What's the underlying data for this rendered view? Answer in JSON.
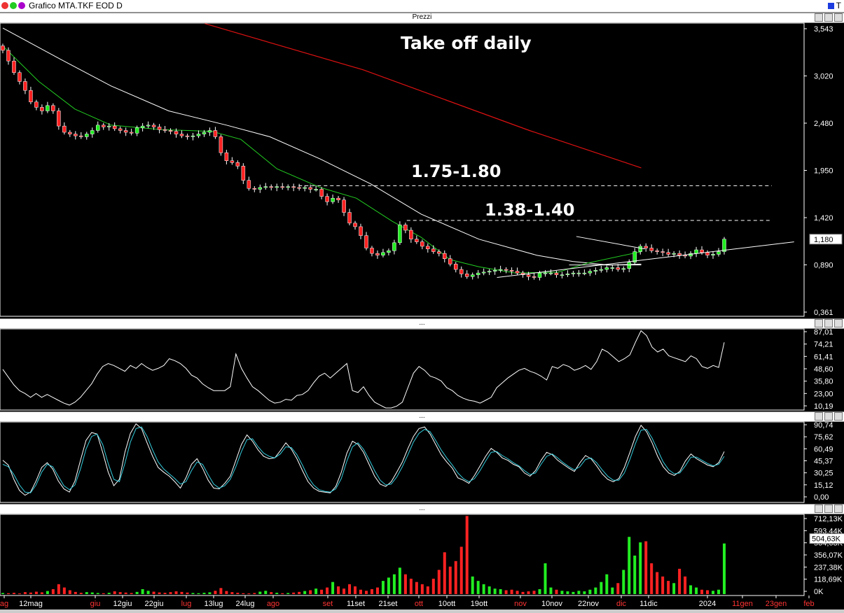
{
  "window": {
    "title": "Grafico MTA.TKF EOD D",
    "top_right_label": "T"
  },
  "panes": {
    "price_header": "Prezzi",
    "rsi_header": "...",
    "stoch_header": "...",
    "volume_header": "..."
  },
  "colors": {
    "bull": "#22ee22",
    "bear": "#ff2222",
    "ma_long": "#dd1111",
    "ma_mid": "#ffffff",
    "ma_short": "#22cc22",
    "stoch_k": "#ffffff",
    "stoch_d": "#33ccdd",
    "weekend_date": "#ff3333",
    "date": "#ffffff"
  },
  "chart_data": [
    {
      "type": "candlestick",
      "title": "Take off daily",
      "ylabels": [
        "3,543",
        "3,020",
        "2,480",
        "1,950",
        "1,420",
        "0,890",
        "0,361"
      ],
      "ylim": [
        0.361,
        3.543
      ],
      "last_price_label": "1,180",
      "annotations": [
        {
          "text": "1.75-1.80",
          "level": 1.78
        },
        {
          "text": "1.38-1.40",
          "level": 1.39
        }
      ],
      "closes": [
        3.3,
        3.18,
        3.05,
        2.95,
        2.85,
        2.72,
        2.66,
        2.62,
        2.68,
        2.62,
        2.45,
        2.38,
        2.36,
        2.34,
        2.33,
        2.36,
        2.4,
        2.46,
        2.44,
        2.45,
        2.42,
        2.4,
        2.38,
        2.37,
        2.43,
        2.45,
        2.46,
        2.44,
        2.41,
        2.4,
        2.39,
        2.36,
        2.34,
        2.33,
        2.34,
        2.36,
        2.38,
        2.4,
        2.33,
        2.15,
        2.06,
        2.04,
        2.0,
        1.84,
        1.75,
        1.74,
        1.76,
        1.77,
        1.76,
        1.77,
        1.76,
        1.77,
        1.76,
        1.75,
        1.76,
        1.74,
        1.74,
        1.66,
        1.6,
        1.64,
        1.62,
        1.48,
        1.36,
        1.32,
        1.22,
        1.08,
        1.02,
        1.0,
        1.03,
        1.05,
        1.14,
        1.34,
        1.28,
        1.18,
        1.15,
        1.1,
        1.07,
        1.04,
        1.02,
        0.96,
        0.9,
        0.84,
        0.79,
        0.76,
        0.78,
        0.8,
        0.81,
        0.82,
        0.83,
        0.84,
        0.83,
        0.82,
        0.8,
        0.78,
        0.76,
        0.75,
        0.8,
        0.8,
        0.8,
        0.78,
        0.78,
        0.79,
        0.8,
        0.8,
        0.8,
        0.82,
        0.83,
        0.84,
        0.86,
        0.86,
        0.84,
        0.85,
        0.92,
        1.04,
        1.1,
        1.08,
        1.05,
        1.04,
        1.03,
        1.01,
        1.02,
        1.0,
        0.99,
        1.02,
        1.06,
        1.03,
        1.0,
        1.01,
        1.04,
        1.18
      ],
      "ma_long": [
        [
          0.28,
          3.6
        ],
        [
          0.5,
          3.08
        ],
        [
          0.73,
          2.4
        ],
        [
          0.885,
          1.98
        ]
      ],
      "ma_mid": [
        [
          0.0,
          3.55
        ],
        [
          0.08,
          3.2
        ],
        [
          0.15,
          2.9
        ],
        [
          0.23,
          2.62
        ],
        [
          0.31,
          2.46
        ],
        [
          0.37,
          2.33
        ],
        [
          0.44,
          2.08
        ],
        [
          0.51,
          1.8
        ],
        [
          0.58,
          1.46
        ],
        [
          0.66,
          1.18
        ],
        [
          0.74,
          1.0
        ],
        [
          0.79,
          0.93
        ],
        [
          0.84,
          0.89
        ],
        [
          0.885,
          0.9
        ]
      ],
      "ma_short": [
        [
          0.0,
          3.35
        ],
        [
          0.05,
          2.95
        ],
        [
          0.1,
          2.64
        ],
        [
          0.15,
          2.46
        ],
        [
          0.22,
          2.41
        ],
        [
          0.29,
          2.39
        ],
        [
          0.33,
          2.3
        ],
        [
          0.38,
          1.97
        ],
        [
          0.44,
          1.76
        ],
        [
          0.49,
          1.64
        ],
        [
          0.54,
          1.38
        ],
        [
          0.58,
          1.2
        ],
        [
          0.62,
          0.95
        ],
        [
          0.66,
          0.87
        ],
        [
          0.71,
          0.8
        ],
        [
          0.77,
          0.81
        ],
        [
          0.81,
          0.91
        ],
        [
          0.885,
          1.04
        ]
      ],
      "trendlines": [
        {
          "from": [
            0.685,
            0.75
          ],
          "to": [
            0.99,
            1.15
          ]
        },
        {
          "from": [
            0.795,
            1.21
          ],
          "to": [
            0.89,
            1.07
          ]
        },
        {
          "from": [
            0.785,
            0.89
          ],
          "to": [
            0.885,
            0.89
          ]
        }
      ],
      "level_lines": [
        1.78,
        1.39
      ]
    },
    {
      "type": "line",
      "ylabels": [
        "87,01",
        "74,21",
        "61,41",
        "48,60",
        "35,80",
        "23,00",
        "10,19"
      ],
      "ylim": [
        10.19,
        87.01
      ],
      "values": [
        48,
        40,
        32,
        26,
        23,
        19,
        23,
        19,
        22,
        19,
        16,
        13,
        11,
        14,
        19,
        26,
        33,
        43,
        51,
        54,
        52,
        49,
        46,
        52,
        49,
        54,
        50,
        47,
        49,
        52,
        59,
        57,
        54,
        49,
        42,
        39,
        33,
        29,
        26,
        26,
        26,
        30,
        64,
        49,
        39,
        30,
        26,
        21,
        16,
        13,
        14,
        17,
        16,
        21,
        22,
        26,
        34,
        41,
        44,
        39,
        44,
        49,
        54,
        26,
        24,
        30,
        21,
        14,
        11,
        8,
        8,
        10,
        14,
        29,
        44,
        51,
        47,
        41,
        39,
        36,
        29,
        26,
        21,
        18,
        16,
        15,
        13,
        16,
        19,
        29,
        34,
        39,
        43,
        47,
        49,
        46,
        44,
        41,
        37,
        51,
        49,
        53,
        51,
        47,
        49,
        52,
        48,
        56,
        69,
        66,
        61,
        56,
        59,
        63,
        76,
        88,
        83,
        71,
        66,
        69,
        62,
        60,
        58,
        56,
        62,
        59,
        51,
        49,
        52,
        50,
        76
      ]
    },
    {
      "type": "line",
      "ylabels": [
        "90,74",
        "75,62",
        "60,49",
        "45,37",
        "30,25",
        "15,12",
        "0,00"
      ],
      "ylim": [
        0,
        90.74
      ],
      "series": [
        {
          "name": "%K",
          "values": [
            46,
            40,
            22,
            8,
            2,
            6,
            20,
            37,
            43,
            35,
            20,
            10,
            6,
            20,
            46,
            71,
            81,
            79,
            56,
            31,
            14,
            22,
            56,
            80,
            92,
            86,
            68,
            51,
            37,
            31,
            26,
            19,
            11,
            24,
            41,
            48,
            36,
            21,
            11,
            10,
            17,
            26,
            46,
            66,
            78,
            70,
            59,
            51,
            48,
            49,
            58,
            68,
            60,
            48,
            33,
            19,
            11,
            7,
            6,
            5,
            13,
            31,
            55,
            70,
            66,
            56,
            41,
            26,
            16,
            13,
            19,
            31,
            44,
            61,
            76,
            86,
            88,
            79,
            66,
            53,
            44,
            36,
            24,
            21,
            17,
            27,
            39,
            51,
            61,
            56,
            49,
            46,
            41,
            38,
            30,
            26,
            33,
            46,
            56,
            53,
            46,
            41,
            36,
            32,
            43,
            52,
            48,
            39,
            29,
            22,
            19,
            23,
            37,
            56,
            76,
            90,
            82,
            68,
            51,
            38,
            30,
            27,
            32,
            45,
            54,
            48,
            44,
            40,
            38,
            43,
            57
          ]
        },
        {
          "name": "%D",
          "values": [
            41,
            38,
            28,
            15,
            6,
            5,
            15,
            31,
            41,
            38,
            26,
            14,
            9,
            15,
            35,
            60,
            76,
            79,
            66,
            42,
            22,
            19,
            42,
            69,
            86,
            88,
            76,
            59,
            44,
            35,
            29,
            23,
            16,
            19,
            33,
            44,
            41,
            28,
            16,
            11,
            14,
            22,
            38,
            57,
            72,
            73,
            63,
            55,
            51,
            49,
            54,
            63,
            62,
            53,
            40,
            25,
            15,
            9,
            7,
            6,
            10,
            23,
            45,
            63,
            68,
            60,
            47,
            33,
            21,
            15,
            16,
            25,
            38,
            53,
            69,
            80,
            85,
            82,
            71,
            59,
            49,
            40,
            30,
            23,
            19,
            23,
            33,
            45,
            56,
            57,
            52,
            48,
            43,
            39,
            33,
            28,
            30,
            41,
            51,
            54,
            49,
            43,
            38,
            34,
            38,
            47,
            49,
            43,
            34,
            26,
            21,
            21,
            30,
            47,
            67,
            84,
            85,
            74,
            59,
            44,
            34,
            29,
            30,
            39,
            50,
            50,
            46,
            42,
            39,
            41,
            51
          ]
        }
      ]
    },
    {
      "type": "bar",
      "ylabels": [
        "712,13K",
        "593,44K",
        "504,63K",
        "356,07K",
        "237,38K",
        "118,69K",
        "0K"
      ],
      "ylim": [
        0,
        712.13
      ],
      "highlight_label": "504,63K",
      "values": [
        10,
        8,
        12,
        6,
        18,
        14,
        22,
        16,
        28,
        45,
        90,
        60,
        35,
        20,
        12,
        18,
        15,
        10,
        8,
        12,
        25,
        18,
        14,
        10,
        20,
        45,
        30,
        22,
        15,
        12,
        18,
        25,
        20,
        14,
        10,
        8,
        12,
        16,
        30,
        55,
        28,
        18,
        12,
        8,
        6,
        10,
        22,
        30,
        18,
        12,
        8,
        10,
        14,
        20,
        28,
        35,
        50,
        40,
        60,
        110,
        70,
        50,
        90,
        70,
        40,
        30,
        45,
        60,
        120,
        150,
        180,
        240,
        180,
        140,
        110,
        90,
        70,
        140,
        220,
        380,
        250,
        300,
        430,
        710,
        160,
        120,
        90,
        70,
        50,
        45,
        35,
        40,
        30,
        20,
        25,
        30,
        45,
        280,
        60,
        40,
        30,
        25,
        20,
        30,
        25,
        40,
        60,
        110,
        180,
        60,
        100,
        220,
        520,
        350,
        470,
        480,
        280,
        200,
        160,
        120,
        100,
        230,
        160,
        80,
        60,
        40,
        35,
        30,
        40,
        460
      ]
    }
  ],
  "xaxis": {
    "labels": [
      {
        "text": "ag",
        "weekend": true
      },
      {
        "text": "12mag",
        "weekend": false
      },
      {
        "text": "giu",
        "weekend": true
      },
      {
        "text": "12giu",
        "weekend": false
      },
      {
        "text": "22giu",
        "weekend": false
      },
      {
        "text": "lug",
        "weekend": true
      },
      {
        "text": "13lug",
        "weekend": false
      },
      {
        "text": "24lug",
        "weekend": false
      },
      {
        "text": "ago",
        "weekend": true
      },
      {
        "text": "set",
        "weekend": true
      },
      {
        "text": "11set",
        "weekend": false
      },
      {
        "text": "21set",
        "weekend": false
      },
      {
        "text": "ott",
        "weekend": true
      },
      {
        "text": "10ott",
        "weekend": false
      },
      {
        "text": "19ott",
        "weekend": false
      },
      {
        "text": "nov",
        "weekend": true
      },
      {
        "text": "10nov",
        "weekend": false
      },
      {
        "text": "22nov",
        "weekend": false
      },
      {
        "text": "dic",
        "weekend": true
      },
      {
        "text": "11dic",
        "weekend": false
      },
      {
        "text": "2024",
        "weekend": false
      },
      {
        "text": "11gen",
        "weekend": true
      },
      {
        "text": "23gen",
        "weekend": true
      },
      {
        "text": "feb",
        "weekend": true
      }
    ]
  }
}
